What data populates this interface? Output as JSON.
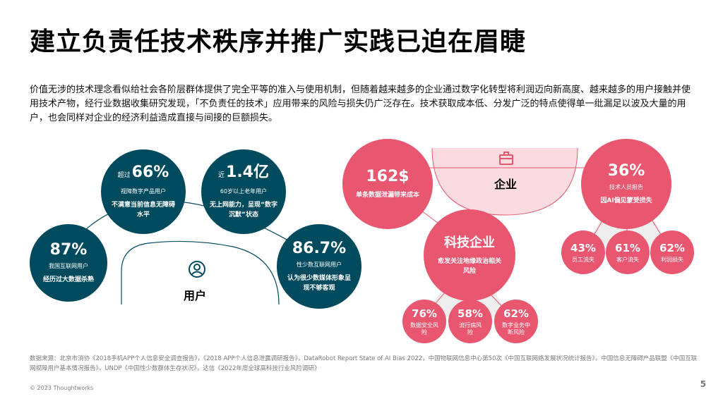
{
  "title": "建立负责任技术秩序并推广实践已迫在眉睫",
  "intro": "价值无涉的技术理念看似给社会各阶层群体提供了完全平等的准入与使用机制，但随着越来越多的企业通过数字化转型将利润迈向新高度、越来越多的用户接触并使用技术产物，经行业数据收集研究发现，「不负责任的技术」应用带来的风险与损失仍广泛存在。技术获取成本低、分发广泛的特点使得单一纰漏足以波及大量的用户，也会同样对企业的经济利益造成直接与间接的巨额损失。",
  "users": {
    "label": "用户",
    "icon": "user-icon",
    "stats": [
      {
        "prefix": "",
        "value": "87%",
        "sub": "我国互联网用户",
        "note": "经历过大数据杀熟"
      },
      {
        "prefix": "超过",
        "value": "66%",
        "sub": "视障数字产品用户",
        "note": "不满意当前信息无障碍水平"
      },
      {
        "prefix": "近",
        "value": "1.4亿",
        "sub": "60岁以上老年用户",
        "note": "无上网能力，呈现“数字沉默”状态"
      },
      {
        "prefix": "",
        "value": "86.7%",
        "sub": "性少数互联网用户",
        "note": "认为很少数媒体形象呈现不够客观"
      }
    ]
  },
  "enterprise": {
    "label": "企业",
    "icon": "briefcase-icon",
    "left": {
      "value": "162$",
      "sub": "单条数据泄漏带来成本"
    },
    "right": {
      "value": "36%",
      "sub": "技术人员报告",
      "note": "因AI偏见蒙受损失"
    },
    "right_small": [
      {
        "value": "43%",
        "sub": "员工流失"
      },
      {
        "value": "61%",
        "sub": "客户流失"
      },
      {
        "value": "62%",
        "sub": "利润损失"
      }
    ],
    "tech": {
      "label": "科技企业",
      "sub": "愈发关注地缘政治相关风险"
    },
    "tech_small": [
      {
        "value": "76%",
        "sub": "数据安全风险"
      },
      {
        "value": "58%",
        "sub": "流行病风险"
      },
      {
        "value": "62%",
        "sub": "数字业务中断风险"
      }
    ]
  },
  "footer": {
    "source": "数据来源：北京市消协《2018手机APP个人信息安全调查报告》，《2018 APP个人信息泄露调研报告》，DataRobot Report State of AI Bias 2022，中国物联网信息中心第50次《中国互联网络发展状况统计报告》，中国信息无障碍产品联盟《中国互联网视障用户基本情况报告》，UNDP《中国性少数群体生存状况》，达信《2022年度全球高科技行业风险调研》",
    "copyright": "© 2023 Thoughtworks",
    "page": "5"
  },
  "colors": {
    "teal": "#004a5d",
    "pink": "#e8566f",
    "light_pink": "#f9dbe0",
    "gray_fan": "#eeeeee"
  }
}
